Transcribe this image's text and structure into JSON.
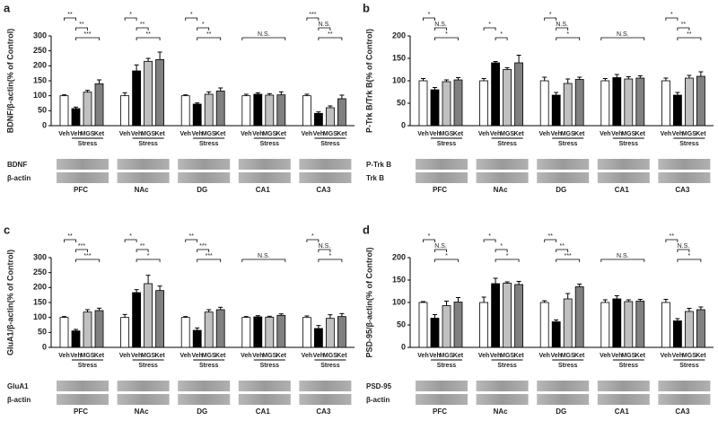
{
  "chart_data": [
    {
      "type": "bar",
      "panel": "a",
      "ylabel": "BDNF/β-actin(% of Control)",
      "ylim": [
        0,
        300
      ],
      "yticks": [
        0,
        50,
        100,
        150,
        200,
        250,
        300
      ],
      "groups": [
        "PFC",
        "NAc",
        "DG",
        "CA1",
        "CA3"
      ],
      "categories": [
        "Veh",
        "Veh",
        "MGS",
        "Ket"
      ],
      "group_label": "Stress",
      "colors": [
        "#ffffff",
        "#000000",
        "#c0c0c0",
        "#808080"
      ],
      "values": [
        [
          100,
          57,
          112,
          140
        ],
        [
          100,
          183,
          215,
          221
        ],
        [
          100,
          72,
          105,
          116
        ],
        [
          100,
          105,
          102,
          103
        ],
        [
          100,
          41,
          60,
          90
        ]
      ],
      "errors": [
        [
          3,
          5,
          6,
          13
        ],
        [
          10,
          20,
          10,
          25
        ],
        [
          3,
          4,
          8,
          10
        ],
        [
          5,
          5,
          5,
          10
        ],
        [
          5,
          5,
          6,
          12
        ]
      ],
      "annotations": [
        [
          "**",
          "**",
          "***"
        ],
        [
          "*",
          "**",
          "**"
        ],
        [
          "*",
          "*",
          "**"
        ],
        [
          "N.S."
        ],
        [
          "***",
          "N.S.",
          "**"
        ]
      ],
      "blot_labels": [
        "BDNF",
        "β-actin"
      ]
    },
    {
      "type": "bar",
      "panel": "b",
      "ylabel": "P-Trk B/Trk B(% of Control)",
      "ylim": [
        0,
        200
      ],
      "yticks": [
        0,
        50,
        100,
        150,
        200
      ],
      "groups": [
        "PFC",
        "NAc",
        "DG",
        "CA1",
        "CA3"
      ],
      "categories": [
        "Veh",
        "Veh",
        "MGS",
        "Ket"
      ],
      "group_label": "Stress",
      "colors": [
        "#ffffff",
        "#000000",
        "#c0c0c0",
        "#808080"
      ],
      "values": [
        [
          100,
          80,
          98,
          102
        ],
        [
          100,
          140,
          125,
          140
        ],
        [
          100,
          68,
          94,
          103
        ],
        [
          100,
          107,
          104,
          106
        ],
        [
          100,
          68,
          106,
          110
        ]
      ],
      "errors": [
        [
          5,
          5,
          4,
          5
        ],
        [
          5,
          3,
          4,
          17
        ],
        [
          8,
          6,
          10,
          5
        ],
        [
          5,
          7,
          5,
          5
        ],
        [
          6,
          6,
          6,
          10
        ]
      ],
      "annotations": [
        [
          "*",
          "N.S.",
          "*"
        ],
        [
          "*",
          "*"
        ],
        [
          "*",
          "N.S.",
          "*"
        ],
        [
          "N.S."
        ],
        [
          "*",
          "**",
          "**"
        ]
      ],
      "blot_labels": [
        "P-Trk B",
        "Trk B"
      ]
    },
    {
      "type": "bar",
      "panel": "c",
      "ylabel": "GluA1/β-actin(% of Control)",
      "ylim": [
        0,
        300
      ],
      "yticks": [
        0,
        50,
        100,
        150,
        200,
        250,
        300
      ],
      "groups": [
        "PFC",
        "NAc",
        "DG",
        "CA1",
        "CA3"
      ],
      "categories": [
        "Veh",
        "Veh",
        "MGS",
        "Ket"
      ],
      "group_label": "Stress",
      "colors": [
        "#ffffff",
        "#000000",
        "#c0c0c0",
        "#808080"
      ],
      "values": [
        [
          100,
          55,
          118,
          123
        ],
        [
          100,
          183,
          213,
          190
        ],
        [
          100,
          57,
          118,
          126
        ],
        [
          100,
          102,
          101,
          107
        ],
        [
          100,
          63,
          97,
          103
        ]
      ],
      "errors": [
        [
          3,
          5,
          8,
          8
        ],
        [
          10,
          10,
          28,
          15
        ],
        [
          3,
          8,
          8,
          8
        ],
        [
          3,
          4,
          3,
          5
        ],
        [
          5,
          10,
          12,
          10
        ]
      ],
      "annotations": [
        [
          "**",
          "***",
          "***"
        ],
        [
          "*",
          "**",
          "*"
        ],
        [
          "**",
          "***",
          "***"
        ],
        [
          "N.S."
        ],
        [
          "*",
          "N.S.",
          "*"
        ]
      ],
      "blot_labels": [
        "GluA1",
        "β-actin"
      ]
    },
    {
      "type": "bar",
      "panel": "d",
      "ylabel": "PSD-95/β-actin(% of Control)",
      "ylim": [
        0,
        200
      ],
      "yticks": [
        0,
        50,
        100,
        150,
        200
      ],
      "groups": [
        "PFC",
        "NAc",
        "DG",
        "CA1",
        "CA3"
      ],
      "categories": [
        "Veh",
        "Veh",
        "MGS",
        "Ket"
      ],
      "group_label": "Stress",
      "colors": [
        "#ffffff",
        "#000000",
        "#c0c0c0",
        "#808080"
      ],
      "values": [
        [
          100,
          65,
          93,
          101
        ],
        [
          100,
          142,
          143,
          140
        ],
        [
          100,
          57,
          108,
          135
        ],
        [
          100,
          108,
          102,
          103
        ],
        [
          100,
          59,
          80,
          84
        ]
      ],
      "errors": [
        [
          2,
          8,
          10,
          10
        ],
        [
          12,
          12,
          3,
          7
        ],
        [
          4,
          4,
          12,
          6
        ],
        [
          6,
          7,
          4,
          4
        ],
        [
          7,
          5,
          7,
          6
        ]
      ],
      "annotations": [
        [
          "*",
          "N.S.",
          "*"
        ],
        [
          "*",
          "*",
          "*"
        ],
        [
          "**",
          "**",
          "***"
        ],
        [
          "N.S."
        ],
        [
          "**",
          "N.S.",
          "*"
        ]
      ],
      "blot_labels": [
        "PSD-95",
        "β-actin"
      ]
    }
  ]
}
